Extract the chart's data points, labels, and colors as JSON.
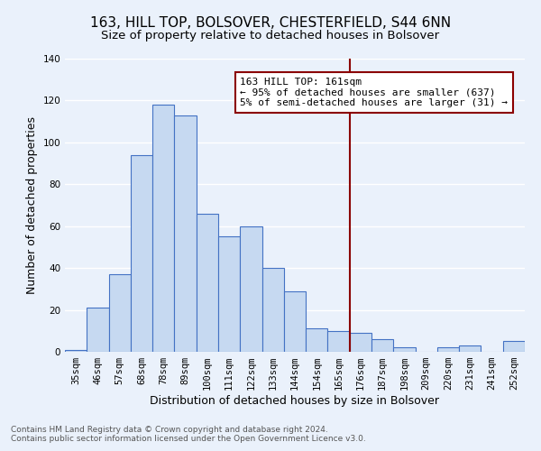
{
  "title": "163, HILL TOP, BOLSOVER, CHESTERFIELD, S44 6NN",
  "subtitle": "Size of property relative to detached houses in Bolsover",
  "xlabel": "Distribution of detached houses by size in Bolsover",
  "ylabel": "Number of detached properties",
  "footnote1": "Contains HM Land Registry data © Crown copyright and database right 2024.",
  "footnote2": "Contains public sector information licensed under the Open Government Licence v3.0.",
  "bar_labels": [
    "35sqm",
    "46sqm",
    "57sqm",
    "68sqm",
    "78sqm",
    "89sqm",
    "100sqm",
    "111sqm",
    "122sqm",
    "133sqm",
    "144sqm",
    "154sqm",
    "165sqm",
    "176sqm",
    "187sqm",
    "198sqm",
    "209sqm",
    "220sqm",
    "231sqm",
    "241sqm",
    "252sqm"
  ],
  "bar_values": [
    1,
    21,
    37,
    94,
    118,
    113,
    66,
    55,
    60,
    40,
    29,
    11,
    10,
    9,
    6,
    2,
    0,
    2,
    3,
    0,
    5
  ],
  "bar_color": "#c6d9f1",
  "bar_edge_color": "#4472c4",
  "bg_color": "#eaf1fb",
  "grid_color": "#ffffff",
  "vline_color": "#8b0000",
  "annotation_box_color": "#8b0000",
  "annotation_box_bg": "#ffffff",
  "annotation_line1": "163 HILL TOP: 161sqm",
  "annotation_line2": "← 95% of detached houses are smaller (637)",
  "annotation_line3": "5% of semi-detached houses are larger (31) →",
  "ylim": [
    0,
    140
  ],
  "yticks": [
    0,
    20,
    40,
    60,
    80,
    100,
    120,
    140
  ],
  "title_fontsize": 11,
  "subtitle_fontsize": 9.5,
  "axis_label_fontsize": 9,
  "tick_fontsize": 7.5,
  "annotation_fontsize": 8,
  "footnote_fontsize": 6.5
}
